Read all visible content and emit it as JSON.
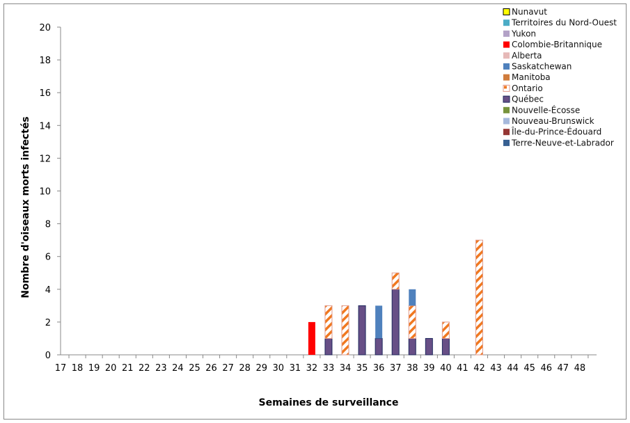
{
  "chart_data": {
    "type": "bar",
    "stacked": true,
    "title": "",
    "xlabel": "Semaines de surveillance",
    "ylabel": "Nombre d'oiseaux morts infectés",
    "ylim": [
      0,
      20
    ],
    "yticks": [
      0,
      2,
      4,
      6,
      8,
      10,
      12,
      14,
      16,
      18,
      20
    ],
    "grid": false,
    "legend_placement": "top-right",
    "categories": [
      "17",
      "18",
      "19",
      "20",
      "21",
      "22",
      "23",
      "24",
      "25",
      "26",
      "27",
      "28",
      "29",
      "30",
      "31",
      "32",
      "33",
      "34",
      "35",
      "36",
      "37",
      "38",
      "39",
      "40",
      "41",
      "42",
      "43",
      "44",
      "45",
      "46",
      "47",
      "48"
    ],
    "series": [
      {
        "name": "Nunavut",
        "color": "#ffff00",
        "values": [
          0,
          0,
          0,
          0,
          0,
          0,
          0,
          0,
          0,
          0,
          0,
          0,
          0,
          0,
          0,
          0,
          0,
          0,
          0,
          0,
          0,
          0,
          0,
          0,
          0,
          0,
          0,
          0,
          0,
          0,
          0,
          0
        ]
      },
      {
        "name": "Territoires du Nord-Ouest",
        "color": "#4bacc6",
        "values": [
          0,
          0,
          0,
          0,
          0,
          0,
          0,
          0,
          0,
          0,
          0,
          0,
          0,
          0,
          0,
          0,
          0,
          0,
          0,
          0,
          0,
          0,
          0,
          0,
          0,
          0,
          0,
          0,
          0,
          0,
          0,
          0
        ]
      },
      {
        "name": "Yukon",
        "color": "#b3a2c7",
        "values": [
          0,
          0,
          0,
          0,
          0,
          0,
          0,
          0,
          0,
          0,
          0,
          0,
          0,
          0,
          0,
          0,
          0,
          0,
          0,
          0,
          0,
          0,
          0,
          0,
          0,
          0,
          0,
          0,
          0,
          0,
          0,
          0
        ]
      },
      {
        "name": "Colombie-Britannique",
        "color": "#ff0000",
        "values": [
          0,
          0,
          0,
          0,
          0,
          0,
          0,
          0,
          0,
          0,
          0,
          0,
          0,
          0,
          0,
          2,
          0,
          0,
          0,
          0,
          0,
          0,
          0,
          0,
          0,
          0,
          0,
          0,
          0,
          0,
          0,
          0
        ]
      },
      {
        "name": "Alberta",
        "color": "#e6b9b8",
        "values": [
          0,
          0,
          0,
          0,
          0,
          0,
          0,
          0,
          0,
          0,
          0,
          0,
          0,
          0,
          0,
          0,
          0,
          0,
          0,
          0,
          0,
          0,
          0,
          0,
          0,
          0,
          0,
          0,
          0,
          0,
          0,
          0
        ]
      },
      {
        "name": "Saskatchewan",
        "color": "#4f81bd",
        "values": [
          0,
          0,
          0,
          0,
          0,
          0,
          0,
          0,
          0,
          0,
          0,
          0,
          0,
          0,
          0,
          0,
          0,
          0,
          0,
          2,
          0,
          1,
          0,
          0,
          0,
          0,
          0,
          0,
          0,
          0,
          0,
          0
        ]
      },
      {
        "name": "Manitoba",
        "color": "#d07c3c",
        "values": [
          0,
          0,
          0,
          0,
          0,
          0,
          0,
          0,
          0,
          0,
          0,
          0,
          0,
          0,
          0,
          0,
          0,
          0,
          0,
          0,
          0,
          0,
          0,
          0,
          0,
          0,
          0,
          0,
          0,
          0,
          0,
          0
        ]
      },
      {
        "name": "Ontario",
        "color": "#f07820",
        "pattern": "diagonal-stripes",
        "values": [
          0,
          0,
          0,
          0,
          0,
          0,
          0,
          0,
          0,
          0,
          0,
          0,
          0,
          0,
          0,
          0,
          2,
          3,
          0,
          0,
          1,
          2,
          0,
          1,
          0,
          7,
          0,
          0,
          0,
          0,
          0,
          0
        ]
      },
      {
        "name": "Québec",
        "color": "#674f86",
        "values": [
          0,
          0,
          0,
          0,
          0,
          0,
          0,
          0,
          0,
          0,
          0,
          0,
          0,
          0,
          0,
          0,
          1,
          0,
          3,
          1,
          4,
          1,
          1,
          1,
          0,
          0,
          0,
          0,
          0,
          0,
          0,
          0
        ]
      },
      {
        "name": "Nouvelle-Écosse",
        "color": "#77933c",
        "values": [
          0,
          0,
          0,
          0,
          0,
          0,
          0,
          0,
          0,
          0,
          0,
          0,
          0,
          0,
          0,
          0,
          0,
          0,
          0,
          0,
          0,
          0,
          0,
          0,
          0,
          0,
          0,
          0,
          0,
          0,
          0,
          0
        ]
      },
      {
        "name": "Nouveau-Brunswick",
        "color": "#a6b9dc",
        "values": [
          0,
          0,
          0,
          0,
          0,
          0,
          0,
          0,
          0,
          0,
          0,
          0,
          0,
          0,
          0,
          0,
          0,
          0,
          0,
          0,
          0,
          0,
          0,
          0,
          0,
          0,
          0,
          0,
          0,
          0,
          0,
          0
        ]
      },
      {
        "name": "Île-du-Prince-Édouard",
        "color": "#953735",
        "values": [
          0,
          0,
          0,
          0,
          0,
          0,
          0,
          0,
          0,
          0,
          0,
          0,
          0,
          0,
          0,
          0,
          0,
          0,
          0,
          0,
          0,
          0,
          0,
          0,
          0,
          0,
          0,
          0,
          0,
          0,
          0,
          0
        ]
      },
      {
        "name": "Terre-Neuve-et-Labrador",
        "color": "#376092",
        "values": [
          0,
          0,
          0,
          0,
          0,
          0,
          0,
          0,
          0,
          0,
          0,
          0,
          0,
          0,
          0,
          0,
          0,
          0,
          0,
          0,
          0,
          0,
          0,
          0,
          0,
          0,
          0,
          0,
          0,
          0,
          0,
          0
        ]
      }
    ],
    "stack_order": [
      "Colombie-Britannique",
      "Québec",
      "Ontario",
      "Saskatchewan"
    ]
  }
}
